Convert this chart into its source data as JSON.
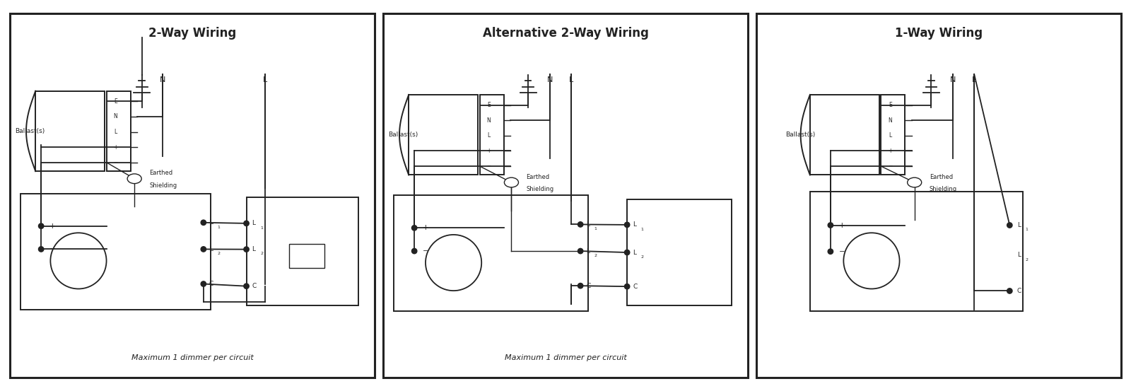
{
  "title1": "2-Way Wiring",
  "title2": "Alternative 2-Way Wiring",
  "title3": "1-Way Wiring",
  "subtitle1": "Maximum 1 dimmer per circuit",
  "subtitle2": "Maximum 1 dimmer per circuit",
  "bg_color": "#ffffff",
  "line_color": "#222222"
}
